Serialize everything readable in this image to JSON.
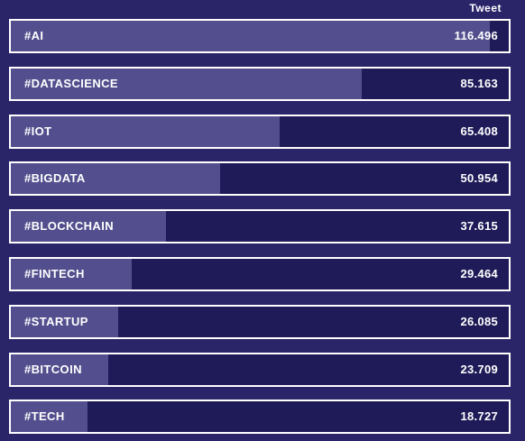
{
  "chart_data": {
    "type": "bar",
    "orientation": "horizontal",
    "value_header": "Tweet",
    "categories": [
      "#AI",
      "#DATASCIENCE",
      "#IOT",
      "#BIGDATA",
      "#BLOCKCHAIN",
      "#FINTECH",
      "#STARTUP",
      "#BITCOIN",
      "#TECH"
    ],
    "values": [
      116.496,
      85.163,
      65.408,
      50.954,
      37.615,
      29.464,
      26.085,
      23.709,
      18.727
    ],
    "value_labels": [
      "116.496",
      "85.163",
      "65.408",
      "50.954",
      "37.615",
      "29.464",
      "26.085",
      "23.709",
      "18.727"
    ],
    "xlim": [
      0,
      121
    ],
    "colors": {
      "background": "#2a2569",
      "bar_track": "#1f1b58",
      "bar_fill": "#534f8e",
      "border": "#ffffff",
      "text": "#ffffff"
    }
  }
}
